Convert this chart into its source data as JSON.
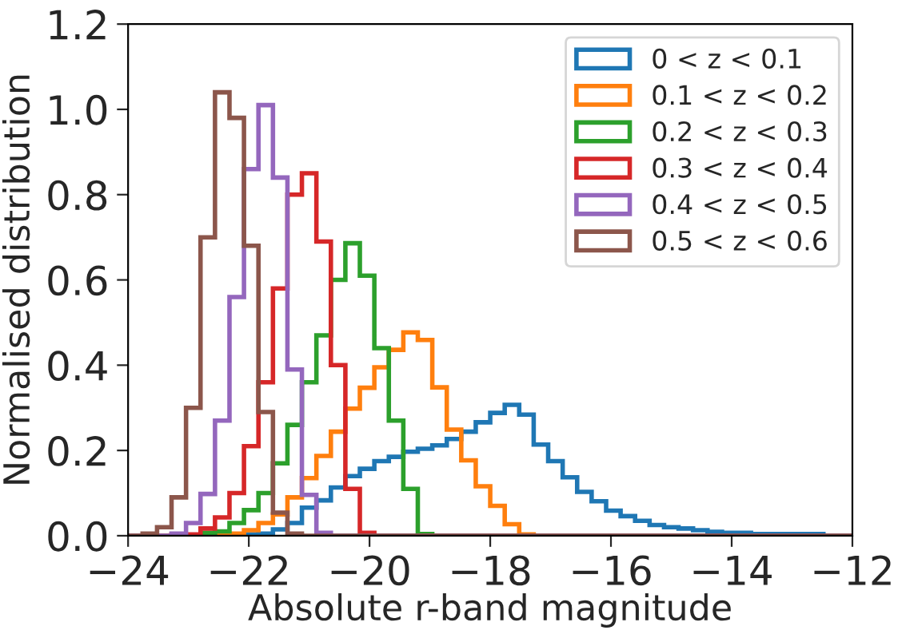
{
  "chart_data": {
    "type": "histogram",
    "xlabel": "Absolute r-band magnitude",
    "ylabel": "Normalised distribution",
    "bins": [
      -24,
      -23.76,
      -23.52,
      -23.28,
      -23.04,
      -22.8,
      -22.56,
      -22.32,
      -22.08,
      -21.84,
      -21.6,
      -21.36,
      -21.12,
      -20.88,
      -20.64,
      -20.4,
      -20.16,
      -19.92,
      -19.68,
      -19.44,
      -19.2,
      -18.96,
      -18.72,
      -18.48,
      -18.24,
      -18,
      -17.76,
      -17.52,
      -17.28,
      -17.04,
      -16.8,
      -16.56,
      -16.32,
      -16.08,
      -15.84,
      -15.6,
      -15.36,
      -15.12,
      -14.88,
      -14.64,
      -14.4,
      -14.16,
      -13.92,
      -13.68,
      -13.44,
      -13.2,
      -12.96,
      -12.72,
      -12.48,
      -12.24,
      -12
    ],
    "series": [
      {
        "name": "0 < z < 0.1",
        "color": "#1f77b4",
        "values": [
          0,
          0,
          0,
          0,
          0,
          0,
          0,
          0,
          0.003,
          0.005,
          0.015,
          0.03,
          0.066,
          0.083,
          0.113,
          0.14,
          0.157,
          0.175,
          0.185,
          0.197,
          0.204,
          0.212,
          0.227,
          0.244,
          0.266,
          0.288,
          0.307,
          0.284,
          0.214,
          0.175,
          0.137,
          0.103,
          0.081,
          0.059,
          0.046,
          0.035,
          0.025,
          0.02,
          0.017,
          0.013,
          0.009,
          0.007,
          0.007,
          0.004,
          0.004,
          0.004,
          0.004,
          0.004,
          0,
          0
        ]
      },
      {
        "name": "0.1 < z < 0.2",
        "color": "#ff7f0e",
        "values": [
          0,
          0,
          0,
          0,
          0,
          0,
          0.002,
          0.005,
          0.013,
          0.03,
          0.05,
          0.09,
          0.135,
          0.187,
          0.244,
          0.298,
          0.347,
          0.395,
          0.436,
          0.477,
          0.459,
          0.348,
          0.249,
          0.177,
          0.116,
          0.07,
          0.027,
          0.003,
          0,
          0,
          0,
          0,
          0,
          0,
          0,
          0,
          0,
          0,
          0,
          0,
          0,
          0,
          0,
          0,
          0,
          0,
          0,
          0,
          0,
          0
        ]
      },
      {
        "name": "0.2 < z < 0.3",
        "color": "#2ca02c",
        "values": [
          0,
          0,
          0,
          0,
          0,
          0.007,
          0.01,
          0.03,
          0.06,
          0.1,
          0.17,
          0.26,
          0.36,
          0.47,
          0.6,
          0.686,
          0.61,
          0.44,
          0.27,
          0.11,
          0.004,
          0,
          0,
          0,
          0,
          0,
          0,
          0,
          0,
          0,
          0,
          0,
          0,
          0,
          0,
          0,
          0,
          0,
          0,
          0,
          0,
          0,
          0,
          0,
          0,
          0,
          0,
          0,
          0,
          0
        ]
      },
      {
        "name": "0.3 < z < 0.4",
        "color": "#d62728",
        "values": [
          0,
          0,
          0,
          0.003,
          0.003,
          0.017,
          0.043,
          0.1,
          0.21,
          0.36,
          0.58,
          0.8,
          0.85,
          0.69,
          0.4,
          0.11,
          0.007,
          0,
          0,
          0,
          0,
          0,
          0,
          0,
          0,
          0,
          0,
          0,
          0,
          0,
          0,
          0,
          0,
          0,
          0,
          0,
          0,
          0,
          0,
          0,
          0,
          0,
          0,
          0,
          0,
          0,
          0,
          0,
          0,
          0
        ]
      },
      {
        "name": "0.4 < z < 0.5",
        "color": "#9467bd",
        "values": [
          0,
          0,
          0,
          0.005,
          0.03,
          0.098,
          0.27,
          0.56,
          0.86,
          1.01,
          0.84,
          0.39,
          0.096,
          0.007,
          0,
          0,
          0,
          0,
          0,
          0,
          0,
          0,
          0,
          0,
          0,
          0,
          0,
          0,
          0,
          0,
          0,
          0,
          0,
          0,
          0,
          0,
          0,
          0,
          0,
          0,
          0,
          0,
          0,
          0,
          0,
          0,
          0,
          0,
          0,
          0
        ]
      },
      {
        "name": "0.5 < z < 0.6",
        "color": "#8c564b",
        "values": [
          0,
          0.005,
          0.02,
          0.09,
          0.3,
          0.7,
          1.04,
          0.98,
          0.68,
          0.29,
          0.054,
          0.005,
          0,
          0,
          0,
          0,
          0,
          0,
          0,
          0,
          0,
          0,
          0,
          0,
          0,
          0,
          0,
          0,
          0,
          0,
          0,
          0,
          0,
          0,
          0,
          0,
          0,
          0,
          0,
          0,
          0,
          0,
          0,
          0,
          0,
          0,
          0,
          0,
          0,
          0
        ]
      }
    ],
    "xlim": [
      -24,
      -12
    ],
    "xticks": [
      {
        "value": -24,
        "label": "−24"
      },
      {
        "value": -22,
        "label": "−22"
      },
      {
        "value": -20,
        "label": "−20"
      },
      {
        "value": -18,
        "label": "−18"
      },
      {
        "value": -16,
        "label": "−16"
      },
      {
        "value": -14,
        "label": "−14"
      },
      {
        "value": -12,
        "label": "−12"
      }
    ],
    "ylim": [
      0,
      1.2
    ],
    "yticks": [
      {
        "value": 0,
        "label": "0.0"
      },
      {
        "value": 0.2,
        "label": "0.2"
      },
      {
        "value": 0.4,
        "label": "0.4"
      },
      {
        "value": 0.6,
        "label": "0.6"
      },
      {
        "value": 0.8,
        "label": "0.8"
      },
      {
        "value": 1.0,
        "label": "1.0"
      },
      {
        "value": 1.2,
        "label": "1.2"
      }
    ],
    "legend": "top right"
  }
}
